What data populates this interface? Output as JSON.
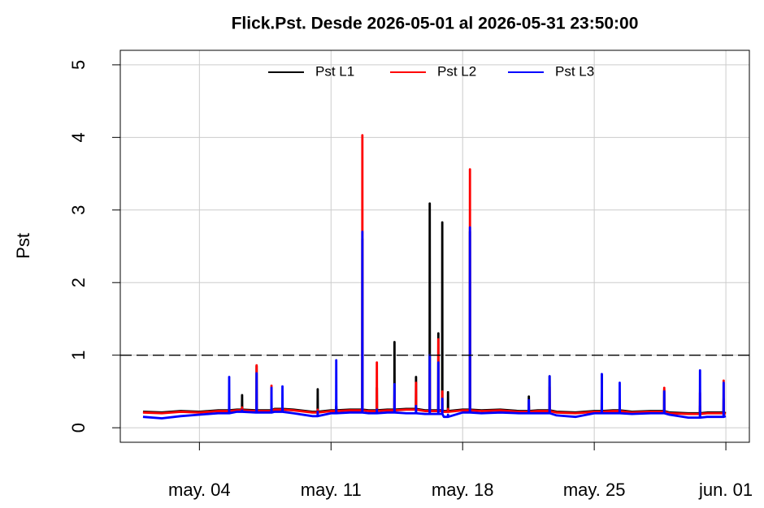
{
  "chart_data": {
    "type": "line",
    "title": "Flick.Pst. Desde  2026-05-01  al  2026-05-31 23:50:00",
    "y_label": "Pst",
    "x": [
      "2026-05-01 00:00",
      "2026-05-02 00:00",
      "2026-05-03 00:00",
      "2026-05-04 00:00",
      "2026-05-05 00:00",
      "2026-05-05 13:50",
      "2026-05-05 14:00",
      "2026-05-05 14:10",
      "2026-05-06 00:00",
      "2026-05-06 06:20",
      "2026-05-06 06:30",
      "2026-05-06 06:40",
      "2026-05-07 00:00",
      "2026-05-07 00:50",
      "2026-05-07 01:00",
      "2026-05-07 01:10",
      "2026-05-07 19:50",
      "2026-05-07 20:00",
      "2026-05-07 20:10",
      "2026-05-08 00:00",
      "2026-05-08 09:50",
      "2026-05-08 10:00",
      "2026-05-08 10:10",
      "2026-05-09 00:00",
      "2026-05-10 00:00",
      "2026-05-10 06:50",
      "2026-05-10 07:00",
      "2026-05-10 07:10",
      "2026-05-11 00:00",
      "2026-05-11 06:30",
      "2026-05-11 06:40",
      "2026-05-11 06:50",
      "2026-05-12 00:00",
      "2026-05-12 15:50",
      "2026-05-12 16:00",
      "2026-05-12 16:10",
      "2026-05-13 00:00",
      "2026-05-13 10:20",
      "2026-05-13 10:30",
      "2026-05-13 10:40",
      "2026-05-14 00:00",
      "2026-05-14 08:50",
      "2026-05-14 09:00",
      "2026-05-14 09:10",
      "2026-05-15 00:00",
      "2026-05-15 12:20",
      "2026-05-15 12:30",
      "2026-05-15 12:40",
      "2026-05-16 00:00",
      "2026-05-16 05:50",
      "2026-05-16 06:00",
      "2026-05-16 06:10",
      "2026-05-16 16:50",
      "2026-05-16 17:00",
      "2026-05-16 17:10",
      "2026-05-16 21:50",
      "2026-05-16 22:00",
      "2026-05-16 22:10",
      "2026-05-17 00:00",
      "2026-05-17 05:10",
      "2026-05-17 05:20",
      "2026-05-17 05:30",
      "2026-05-18 00:00",
      "2026-05-18 09:10",
      "2026-05-18 09:20",
      "2026-05-18 09:30",
      "2026-05-19 00:00",
      "2026-05-20 00:00",
      "2026-05-21 00:00",
      "2026-05-21 12:20",
      "2026-05-21 12:30",
      "2026-05-21 12:40",
      "2026-05-22 00:00",
      "2026-05-22 14:50",
      "2026-05-22 15:00",
      "2026-05-22 15:10",
      "2026-05-23 00:00",
      "2026-05-24 00:00",
      "2026-05-25 00:00",
      "2026-05-25 09:30",
      "2026-05-25 09:40",
      "2026-05-25 09:50",
      "2026-05-26 00:00",
      "2026-05-26 08:20",
      "2026-05-26 08:30",
      "2026-05-26 08:40",
      "2026-05-27 00:00",
      "2026-05-28 00:00",
      "2026-05-28 17:10",
      "2026-05-28 17:20",
      "2026-05-28 17:30",
      "2026-05-29 00:00",
      "2026-05-30 00:00",
      "2026-05-30 14:50",
      "2026-05-30 15:00",
      "2026-05-30 15:10",
      "2026-05-31 00:00",
      "2026-05-31 21:00",
      "2026-05-31 21:10",
      "2026-05-31 21:20",
      "2026-05-31 23:50"
    ],
    "series": [
      {
        "name": "Pst L1",
        "color": "#000000",
        "values": [
          0.22,
          0.21,
          0.23,
          0.22,
          0.24,
          0.24,
          0.26,
          0.24,
          0.25,
          0.25,
          0.45,
          0.25,
          0.24,
          0.24,
          0.85,
          0.24,
          0.24,
          0.3,
          0.24,
          0.26,
          0.26,
          0.28,
          0.26,
          0.25,
          0.22,
          0.22,
          0.53,
          0.22,
          0.24,
          0.24,
          0.3,
          0.24,
          0.25,
          0.25,
          2.6,
          0.25,
          0.24,
          0.24,
          0.55,
          0.24,
          0.25,
          0.25,
          1.18,
          0.25,
          0.26,
          0.26,
          0.7,
          0.26,
          0.24,
          0.24,
          3.09,
          0.24,
          0.24,
          1.3,
          0.24,
          0.24,
          2.83,
          0.24,
          0.23,
          0.23,
          0.49,
          0.23,
          0.25,
          0.25,
          2.7,
          0.25,
          0.24,
          0.25,
          0.23,
          0.23,
          0.43,
          0.23,
          0.24,
          0.24,
          0.71,
          0.24,
          0.22,
          0.21,
          0.23,
          0.23,
          0.73,
          0.23,
          0.24,
          0.24,
          0.3,
          0.24,
          0.22,
          0.23,
          0.23,
          0.52,
          0.23,
          0.21,
          0.2,
          0.2,
          0.3,
          0.2,
          0.21,
          0.21,
          0.4,
          0.21,
          0.2
        ]
      },
      {
        "name": "Pst L2",
        "color": "#ff0000",
        "values": [
          0.21,
          0.2,
          0.22,
          0.21,
          0.23,
          0.23,
          0.25,
          0.23,
          0.24,
          0.24,
          0.28,
          0.24,
          0.23,
          0.23,
          0.86,
          0.23,
          0.23,
          0.58,
          0.23,
          0.25,
          0.25,
          0.27,
          0.25,
          0.24,
          0.21,
          0.21,
          0.25,
          0.21,
          0.23,
          0.23,
          0.28,
          0.23,
          0.24,
          0.24,
          4.03,
          0.24,
          0.23,
          0.23,
          0.9,
          0.23,
          0.24,
          0.24,
          0.45,
          0.24,
          0.25,
          0.25,
          0.62,
          0.25,
          0.23,
          0.23,
          0.8,
          0.23,
          0.23,
          1.22,
          0.23,
          0.23,
          0.5,
          0.23,
          0.22,
          0.22,
          0.26,
          0.22,
          0.24,
          0.24,
          3.56,
          0.24,
          0.23,
          0.24,
          0.22,
          0.22,
          0.3,
          0.22,
          0.23,
          0.23,
          0.56,
          0.23,
          0.21,
          0.2,
          0.22,
          0.22,
          0.6,
          0.22,
          0.23,
          0.23,
          0.28,
          0.23,
          0.21,
          0.22,
          0.22,
          0.55,
          0.22,
          0.2,
          0.19,
          0.19,
          0.48,
          0.19,
          0.2,
          0.2,
          0.65,
          0.2,
          0.19
        ]
      },
      {
        "name": "Pst L3",
        "color": "#0000ff",
        "values": [
          0.15,
          0.13,
          0.16,
          0.18,
          0.2,
          0.2,
          0.7,
          0.2,
          0.22,
          0.22,
          0.24,
          0.22,
          0.21,
          0.21,
          0.75,
          0.21,
          0.21,
          0.55,
          0.21,
          0.22,
          0.22,
          0.57,
          0.22,
          0.2,
          0.16,
          0.16,
          0.22,
          0.16,
          0.2,
          0.2,
          0.93,
          0.2,
          0.21,
          0.21,
          2.7,
          0.21,
          0.2,
          0.2,
          0.25,
          0.2,
          0.21,
          0.21,
          0.6,
          0.21,
          0.2,
          0.2,
          0.3,
          0.2,
          0.19,
          0.19,
          1.0,
          0.19,
          0.19,
          0.9,
          0.19,
          0.19,
          0.4,
          0.19,
          0.15,
          0.15,
          0.18,
          0.15,
          0.21,
          0.21,
          2.76,
          0.21,
          0.2,
          0.21,
          0.2,
          0.2,
          0.38,
          0.2,
          0.2,
          0.2,
          0.71,
          0.2,
          0.17,
          0.15,
          0.2,
          0.2,
          0.74,
          0.2,
          0.2,
          0.2,
          0.62,
          0.2,
          0.19,
          0.2,
          0.2,
          0.5,
          0.2,
          0.18,
          0.14,
          0.14,
          0.79,
          0.14,
          0.15,
          0.15,
          0.62,
          0.15,
          0.16
        ]
      }
    ],
    "xlim": [
      "2026-04-29 19:00",
      "2026-06-02 06:00"
    ],
    "xticks": [
      {
        "value": "2026-05-04 00:00",
        "label": "may. 04"
      },
      {
        "value": "2026-05-11 00:00",
        "label": "may. 11"
      },
      {
        "value": "2026-05-18 00:00",
        "label": "may. 18"
      },
      {
        "value": "2026-05-25 00:00",
        "label": "may. 25"
      },
      {
        "value": "2026-06-01 00:00",
        "label": "jun. 01"
      }
    ],
    "ylim": [
      -0.2,
      5.2
    ],
    "yticks": [
      0,
      1,
      2,
      3,
      4,
      5
    ],
    "reference_line": 1,
    "grid": true,
    "legend": "top"
  }
}
